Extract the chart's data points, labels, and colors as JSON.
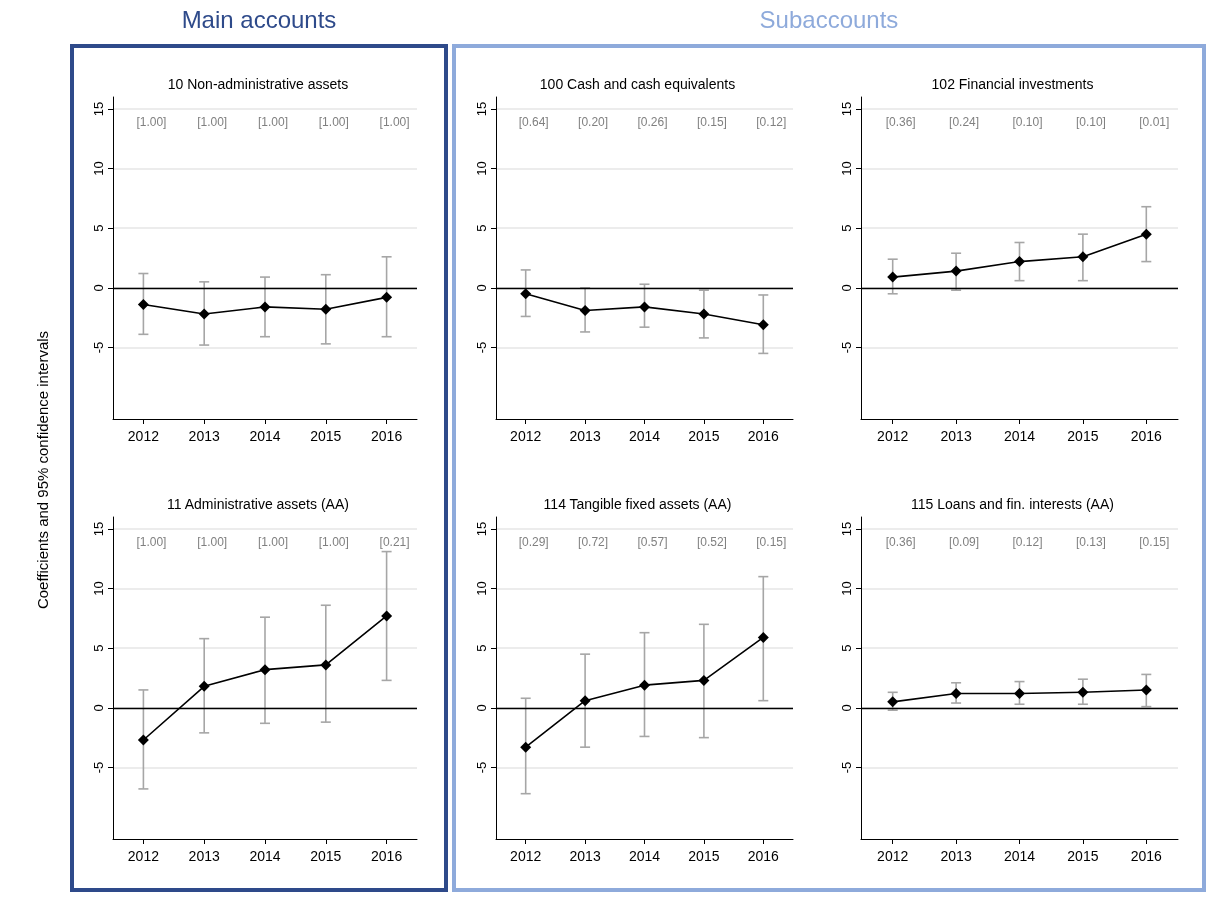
{
  "chart_data": [
    {
      "type": "line",
      "title": "10 Non-administrative assets",
      "ylabel": "Coefficients and 95% confidence intervals",
      "categories": [
        "2012",
        "2013",
        "2014",
        "2015",
        "2016"
      ],
      "values": [
        -1.4,
        -2.2,
        -1.6,
        -1.8,
        -0.8
      ],
      "errors": [
        [
          -3.9,
          1.2
        ],
        [
          -4.8,
          0.5
        ],
        [
          -4.1,
          0.9
        ],
        [
          -4.7,
          1.1
        ],
        [
          -4.1,
          2.6
        ]
      ],
      "color": "#000000",
      "ylim": [
        -11,
        16
      ],
      "yticks": [
        -5,
        0,
        5,
        10,
        15
      ],
      "grid": "y",
      "marker": "diamond",
      "ref_lines": [
        {
          "axis": "y",
          "value": 0,
          "color": "#000000"
        }
      ],
      "annotations": [
        "Main accounts",
        "[1.00]",
        "[1.00]",
        "[1.00]",
        "[1.00]",
        "[1.00]"
      ]
    },
    {
      "type": "line",
      "title": "100 Cash and cash equivalents",
      "categories": [
        "2012",
        "2013",
        "2014",
        "2015",
        "2016"
      ],
      "values": [
        -0.5,
        -1.9,
        -1.6,
        -2.2,
        -3.1
      ],
      "errors": [
        [
          -2.4,
          1.5
        ],
        [
          -3.7,
          0.0
        ],
        [
          -3.3,
          0.3
        ],
        [
          -4.2,
          -0.2
        ],
        [
          -5.5,
          -0.6
        ]
      ],
      "color": "#000000",
      "ylim": [
        -11,
        16
      ],
      "yticks": [
        -5,
        0,
        5,
        10,
        15
      ],
      "grid": "y",
      "marker": "diamond",
      "ref_lines": [
        {
          "axis": "y",
          "value": 0,
          "color": "#000000"
        }
      ],
      "annotations": [
        "Subaccounts",
        "[0.64]",
        "[0.20]",
        "[0.26]",
        "[0.15]",
        "[0.12]"
      ]
    },
    {
      "type": "line",
      "title": "102 Financial investments",
      "categories": [
        "2012",
        "2013",
        "2014",
        "2015",
        "2016"
      ],
      "values": [
        0.9,
        1.4,
        2.2,
        2.6,
        4.5
      ],
      "errors": [
        [
          -0.5,
          2.4
        ],
        [
          -0.2,
          2.9
        ],
        [
          0.6,
          3.8
        ],
        [
          0.6,
          4.5
        ],
        [
          2.2,
          6.8
        ]
      ],
      "color": "#000000",
      "ylim": [
        -11,
        16
      ],
      "yticks": [
        -5,
        0,
        5,
        10,
        15
      ],
      "grid": "y",
      "marker": "diamond",
      "ref_lines": [
        {
          "axis": "y",
          "value": 0,
          "color": "#000000"
        }
      ],
      "annotations": [
        "[0.36]",
        "[0.24]",
        "[0.10]",
        "[0.10]",
        "[0.01]"
      ]
    },
    {
      "type": "line",
      "title": "11 Administrative assets (AA)",
      "categories": [
        "2012",
        "2013",
        "2014",
        "2015",
        "2016"
      ],
      "values": [
        -2.7,
        1.8,
        3.2,
        3.6,
        7.7
      ],
      "errors": [
        [
          -6.8,
          1.5
        ],
        [
          -2.1,
          5.8
        ],
        [
          -1.3,
          7.6
        ],
        [
          -1.2,
          8.6
        ],
        [
          2.3,
          13.1
        ]
      ],
      "color": "#000000",
      "ylim": [
        -11,
        16
      ],
      "yticks": [
        -5,
        0,
        5,
        10,
        15
      ],
      "grid": "y",
      "marker": "diamond",
      "ref_lines": [
        {
          "axis": "y",
          "value": 0,
          "color": "#000000"
        }
      ],
      "annotations": [
        "[1.00]",
        "[1.00]",
        "[1.00]",
        "[1.00]",
        "[0.21]"
      ]
    },
    {
      "type": "line",
      "title": "114 Tangible fixed assets (AA)",
      "categories": [
        "2012",
        "2013",
        "2014",
        "2015",
        "2016"
      ],
      "values": [
        -3.3,
        0.6,
        1.9,
        2.3,
        5.9
      ],
      "errors": [
        [
          -7.2,
          0.8
        ],
        [
          -3.3,
          4.5
        ],
        [
          -2.4,
          6.3
        ],
        [
          -2.5,
          7.0
        ],
        [
          0.6,
          11.0
        ]
      ],
      "color": "#000000",
      "ylim": [
        -11,
        16
      ],
      "yticks": [
        -5,
        0,
        5,
        10,
        15
      ],
      "grid": "y",
      "marker": "diamond",
      "ref_lines": [
        {
          "axis": "y",
          "value": 0,
          "color": "#000000"
        }
      ],
      "annotations": [
        "[0.29]",
        "[0.72]",
        "[0.57]",
        "[0.52]",
        "[0.15]"
      ]
    },
    {
      "type": "line",
      "title": "115 Loans and fin. interests (AA)",
      "categories": [
        "2012",
        "2013",
        "2014",
        "2015",
        "2016"
      ],
      "values": [
        0.5,
        1.2,
        1.2,
        1.3,
        1.5
      ],
      "errors": [
        [
          -0.2,
          1.3
        ],
        [
          0.4,
          2.1
        ],
        [
          0.3,
          2.2
        ],
        [
          0.3,
          2.4
        ],
        [
          0.1,
          2.8
        ]
      ],
      "color": "#000000",
      "ylim": [
        -11,
        16
      ],
      "yticks": [
        -5,
        0,
        5,
        10,
        15
      ],
      "grid": "y",
      "marker": "diamond",
      "ref_lines": [
        {
          "axis": "y",
          "value": 0,
          "color": "#000000"
        }
      ],
      "annotations": [
        "[0.36]",
        "[0.09]",
        "[0.12]",
        "[0.13]",
        "[0.15]"
      ]
    }
  ]
}
